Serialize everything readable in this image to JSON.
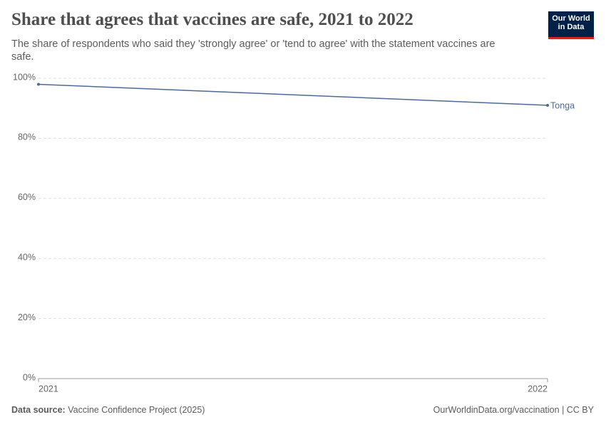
{
  "chart_data": {
    "type": "line",
    "title": "Share that agrees that vaccines are safe, 2021 to 2022",
    "subtitle": "The share of respondents who said they 'strongly agree' or 'tend to agree' with the statement vaccines are safe.",
    "x": [
      2021,
      2022
    ],
    "series": [
      {
        "name": "Tonga",
        "color": "#4c6a9c",
        "values": [
          98,
          91
        ]
      }
    ],
    "xlim": [
      2021,
      2022
    ],
    "xticks": [
      2021,
      2022
    ],
    "ylim": [
      0,
      100
    ],
    "yticks": [
      {
        "value": 0,
        "label": "0%"
      },
      {
        "value": 20,
        "label": "20%"
      },
      {
        "value": 40,
        "label": "40%"
      },
      {
        "value": 60,
        "label": "60%"
      },
      {
        "value": 80,
        "label": "80%"
      },
      {
        "value": 100,
        "label": "100%"
      }
    ],
    "grid": true,
    "source_label": "Data source:",
    "source": "Vaccine Confidence Project (2025)",
    "credit": "OurWorldinData.org/vaccination | CC BY",
    "logo": [
      "Our World",
      "in Data"
    ]
  }
}
